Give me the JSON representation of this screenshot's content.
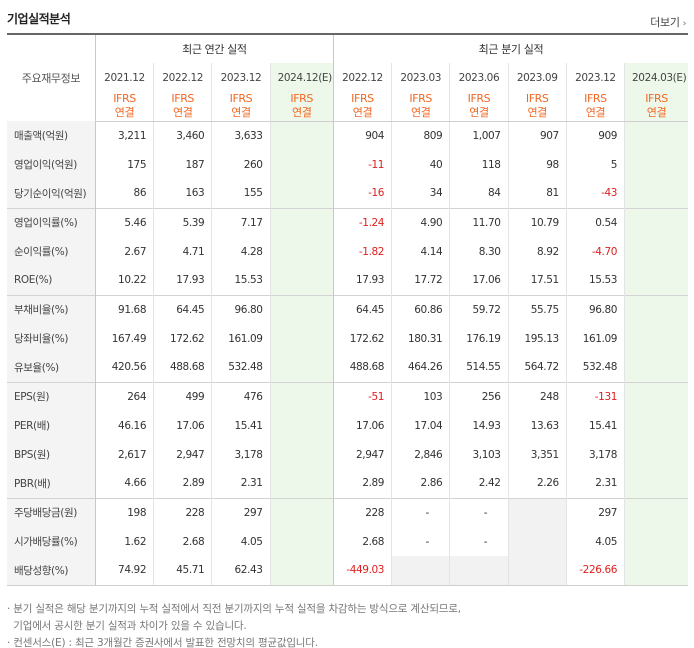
{
  "page": {
    "title": "기업실적분석",
    "more_label": "더보기"
  },
  "header": {
    "row_label": "주요재무정보",
    "annual_group": "최근 연간 실적",
    "quarter_group": "최근 분기 실적",
    "annual_periods": [
      "2021.12",
      "2022.12",
      "2023.12",
      "2024.12(E)"
    ],
    "quarter_periods": [
      "2022.12",
      "2023.03",
      "2023.06",
      "2023.09",
      "2023.12",
      "2024.03(E)"
    ],
    "basis_top": "IFRS",
    "basis_bottom": "연결"
  },
  "rows": [
    {
      "label": "매출액(억원)",
      "annual": [
        "3,211",
        "3,460",
        "3,633",
        ""
      ],
      "quarter": [
        "904",
        "809",
        "1,007",
        "907",
        "909",
        ""
      ]
    },
    {
      "label": "영업이익(억원)",
      "annual": [
        "175",
        "187",
        "260",
        ""
      ],
      "quarter": [
        "-11",
        "40",
        "118",
        "98",
        "5",
        ""
      ]
    },
    {
      "label": "당기순이익(억원)",
      "annual": [
        "86",
        "163",
        "155",
        ""
      ],
      "quarter": [
        "-16",
        "34",
        "84",
        "81",
        "-43",
        ""
      ]
    },
    {
      "label": "영업이익률(%)",
      "annual": [
        "5.46",
        "5.39",
        "7.17",
        ""
      ],
      "quarter": [
        "-1.24",
        "4.90",
        "11.70",
        "10.79",
        "0.54",
        ""
      ]
    },
    {
      "label": "순이익률(%)",
      "annual": [
        "2.67",
        "4.71",
        "4.28",
        ""
      ],
      "quarter": [
        "-1.82",
        "4.14",
        "8.30",
        "8.92",
        "-4.70",
        ""
      ]
    },
    {
      "label": "ROE(%)",
      "annual": [
        "10.22",
        "17.93",
        "15.53",
        ""
      ],
      "quarter": [
        "17.93",
        "17.72",
        "17.06",
        "17.51",
        "15.53",
        ""
      ]
    },
    {
      "label": "부채비율(%)",
      "annual": [
        "91.68",
        "64.45",
        "96.80",
        ""
      ],
      "quarter": [
        "64.45",
        "60.86",
        "59.72",
        "55.75",
        "96.80",
        ""
      ]
    },
    {
      "label": "당좌비율(%)",
      "annual": [
        "167.49",
        "172.62",
        "161.09",
        ""
      ],
      "quarter": [
        "172.62",
        "180.31",
        "176.19",
        "195.13",
        "161.09",
        ""
      ]
    },
    {
      "label": "유보율(%)",
      "annual": [
        "420.56",
        "488.68",
        "532.48",
        ""
      ],
      "quarter": [
        "488.68",
        "464.26",
        "514.55",
        "564.72",
        "532.48",
        ""
      ]
    },
    {
      "label": "EPS(원)",
      "annual": [
        "264",
        "499",
        "476",
        ""
      ],
      "quarter": [
        "-51",
        "103",
        "256",
        "248",
        "-131",
        ""
      ]
    },
    {
      "label": "PER(배)",
      "annual": [
        "46.16",
        "17.06",
        "15.41",
        ""
      ],
      "quarter": [
        "17.06",
        "17.04",
        "14.93",
        "13.63",
        "15.41",
        ""
      ]
    },
    {
      "label": "BPS(원)",
      "annual": [
        "2,617",
        "2,947",
        "3,178",
        ""
      ],
      "quarter": [
        "2,947",
        "2,846",
        "3,103",
        "3,351",
        "3,178",
        ""
      ]
    },
    {
      "label": "PBR(배)",
      "annual": [
        "4.66",
        "2.89",
        "2.31",
        ""
      ],
      "quarter": [
        "2.89",
        "2.86",
        "2.42",
        "2.26",
        "2.31",
        ""
      ]
    },
    {
      "label": "주당배당금(원)",
      "annual": [
        "198",
        "228",
        "297",
        ""
      ],
      "quarter": [
        "228",
        "-",
        "-",
        "",
        "297",
        ""
      ]
    },
    {
      "label": "시가배당률(%)",
      "annual": [
        "1.62",
        "2.68",
        "4.05",
        ""
      ],
      "quarter": [
        "2.68",
        "-",
        "-",
        "",
        "4.05",
        ""
      ]
    },
    {
      "label": "배당성향(%)",
      "annual": [
        "74.92",
        "45.71",
        "62.43",
        ""
      ],
      "quarter": [
        "-449.03",
        "",
        "",
        "",
        "-226.66",
        ""
      ]
    }
  ],
  "notes": [
    "· 분기 실적은 해당 분기까지의 누적 실적에서 직전 분기까지의 누적 실적을 차감하는 방식으로 계산되므로,",
    "  기업에서 공시한 분기 실적과 차이가 있을 수 있습니다.",
    "· 컨센서스(E) : 최근 3개월간 증권사에서 발표한 전망치의 평균값입니다."
  ],
  "colors": {
    "accent": "#f26722",
    "negative": "#e01e1e",
    "estimate_bg": "#eef8ea",
    "label_bg": "#f4f4f4"
  }
}
